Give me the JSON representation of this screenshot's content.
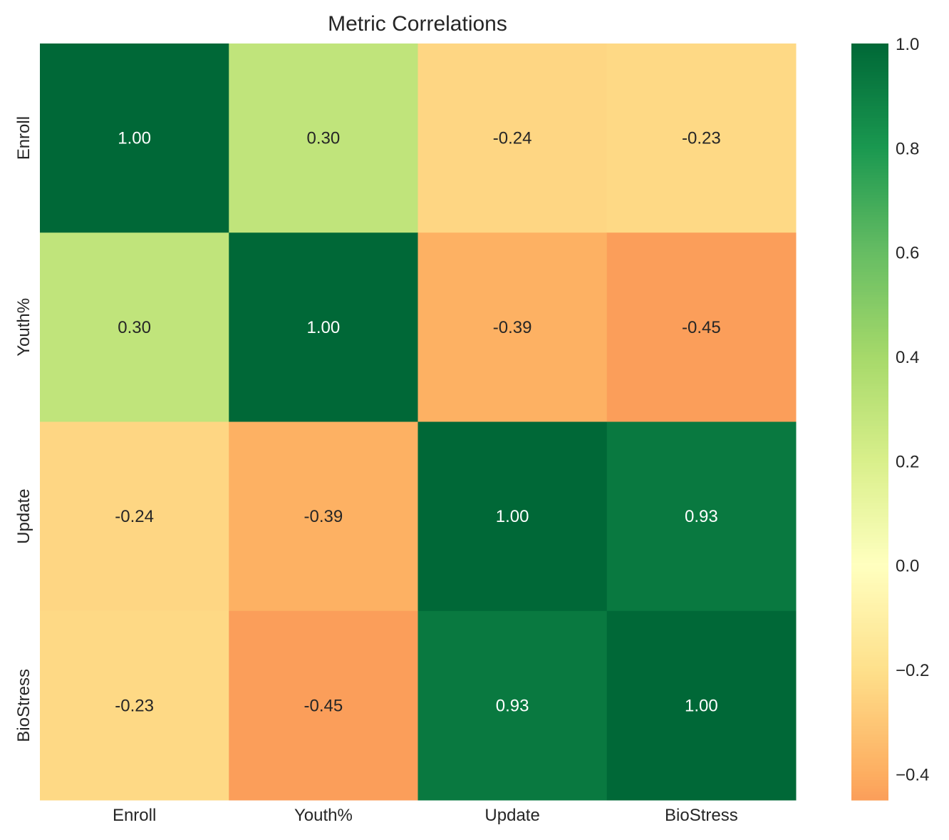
{
  "chart_data": {
    "type": "heatmap",
    "title": "Metric Correlations",
    "xlabel": "",
    "ylabel": "",
    "x_categories": [
      "Enroll",
      "Youth%",
      "Update",
      "BioStress"
    ],
    "y_categories": [
      "Enroll",
      "Youth%",
      "Update",
      "BioStress"
    ],
    "values": [
      [
        1.0,
        0.3,
        -0.24,
        -0.23
      ],
      [
        0.3,
        1.0,
        -0.39,
        -0.45
      ],
      [
        -0.24,
        -0.39,
        1.0,
        0.93
      ],
      [
        -0.23,
        -0.45,
        0.93,
        1.0
      ]
    ],
    "annotations": [
      [
        "1.00",
        "0.30",
        "-0.24",
        "-0.23"
      ],
      [
        "0.30",
        "1.00",
        "-0.39",
        "-0.45"
      ],
      [
        "-0.24",
        "-0.39",
        "1.00",
        "0.93"
      ],
      [
        "-0.23",
        "-0.45",
        "0.93",
        "1.00"
      ]
    ],
    "colormap": "RdYlGn",
    "colormap_center": 0,
    "colorbar": {
      "range": [
        -0.45,
        1.0
      ],
      "position": "right",
      "ticks": [
        1.0,
        0.8,
        0.6,
        0.4,
        0.2,
        0.0,
        -0.2,
        -0.4
      ],
      "tick_labels": [
        "1.0",
        "0.8",
        "0.6",
        "0.4",
        "0.2",
        "0.0",
        "−0.2",
        "−0.4"
      ]
    },
    "grid": false
  }
}
